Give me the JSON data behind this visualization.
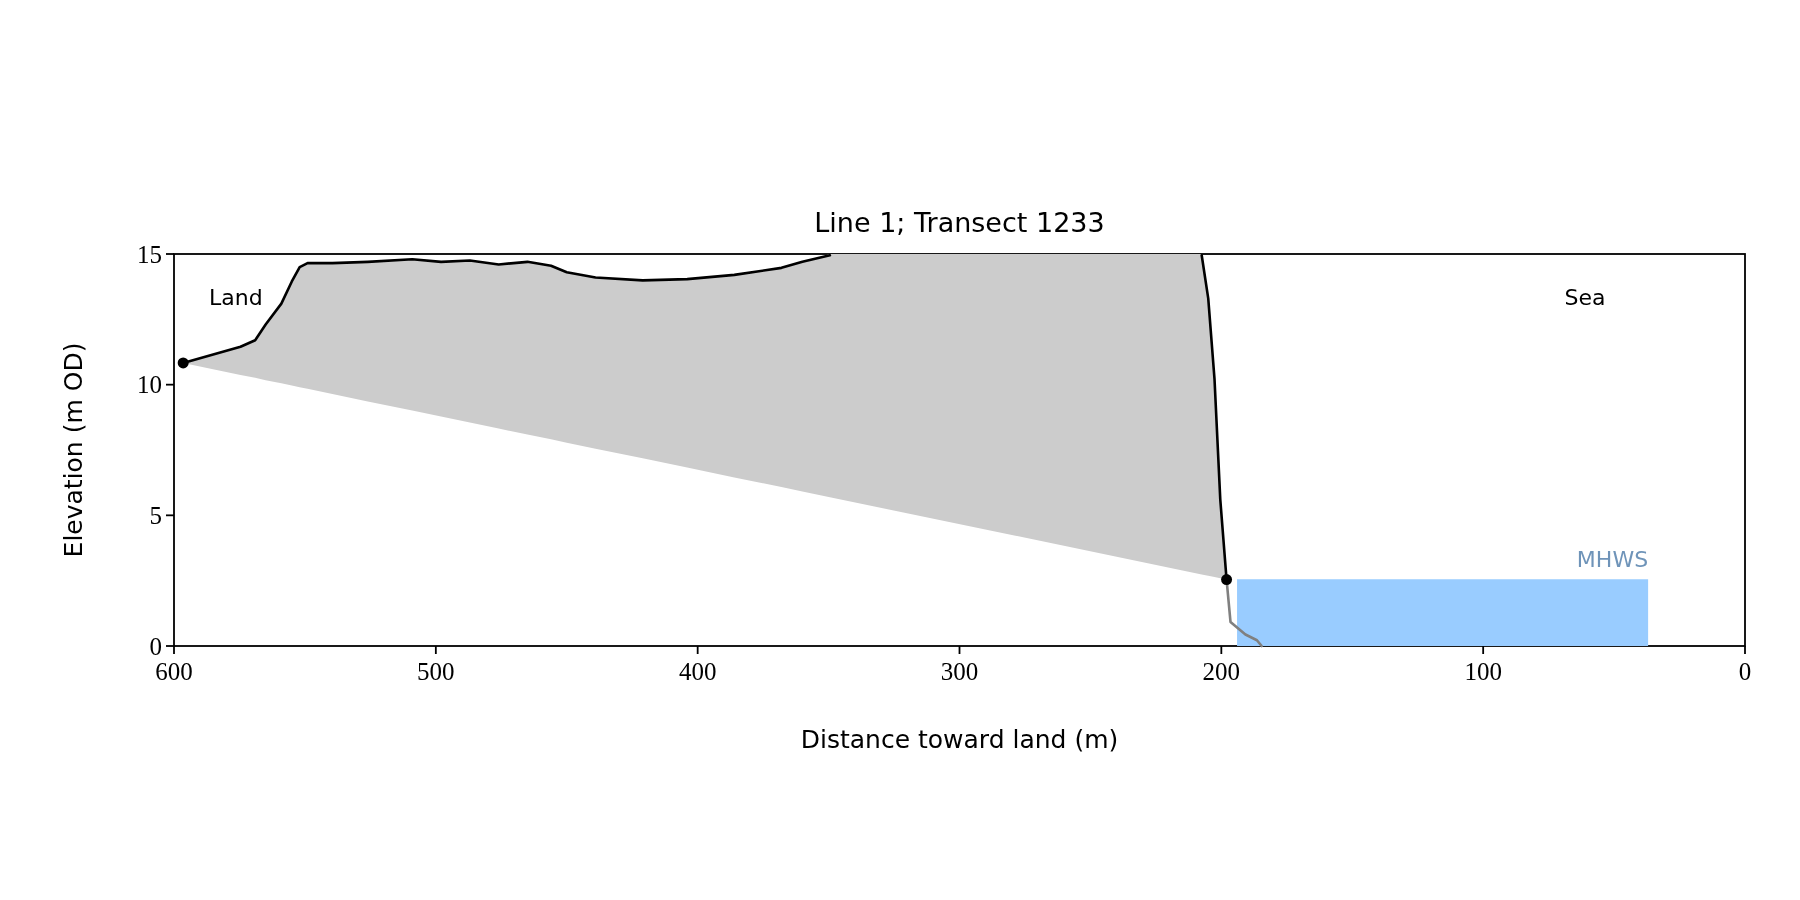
{
  "chart_data": {
    "type": "line",
    "title": "Line 1; Transect 1233",
    "xlabel": "Distance toward land (m)",
    "ylabel": "Elevation (m OD)",
    "xlim": [
      600,
      0
    ],
    "xticks": [
      600,
      500,
      400,
      300,
      200,
      100,
      0
    ],
    "ylim": [
      0,
      15
    ],
    "yticks": [
      0,
      5,
      10,
      15
    ],
    "annotations": [
      "Land",
      "Sea"
    ],
    "series": [
      {
        "type": "area",
        "name": "MHWS",
        "color": "#99ccff",
        "x": [
          194,
          37
        ],
        "values": [
          2.55,
          2.55
        ]
      },
      {
        "color": "#000000",
        "x": [
          596.5,
          574.6,
          569,
          565,
          559,
          555,
          552,
          549,
          539.5,
          526,
          509,
          498,
          487,
          476,
          465,
          456,
          450,
          439,
          421,
          404,
          386,
          368,
          360,
          349.5,
          280,
          207.5,
          205,
          202.6,
          200.4,
          198
        ],
        "values": [
          10.83,
          11.45,
          11.7,
          12.3,
          13.1,
          13.95,
          14.5,
          14.65,
          14.65,
          14.7,
          14.8,
          14.7,
          14.75,
          14.6,
          14.7,
          14.55,
          14.3,
          14.1,
          13.99,
          14.04,
          14.2,
          14.47,
          14.7,
          14.95,
          null,
          14.95,
          13.3,
          10.2,
          5.6,
          2.54
        ],
        "upper": [
          10.83,
          11.45,
          11.7,
          12.3,
          13.1,
          13.95,
          14.5,
          14.65,
          14.65,
          14.7,
          14.8,
          14.7,
          14.75,
          14.6,
          14.7,
          14.55,
          14.3,
          14.1,
          13.99,
          14.04,
          14.2,
          14.47,
          14.7,
          15,
          15,
          15,
          13.3,
          10.2,
          5.6,
          2.54
        ],
        "lower": [
          10.83,
          10.37,
          10.26,
          10.17,
          10.05,
          9.97,
          9.9,
          9.84,
          9.64,
          9.36,
          9.01,
          8.78,
          8.55,
          8.32,
          8.09,
          7.91,
          7.78,
          7.55,
          7.18,
          6.83,
          6.45,
          6.08,
          5.91,
          5.69,
          4.25,
          2.74,
          2.69,
          2.64,
          2.59,
          2.54
        ]
      },
      {
        "type": "line",
        "color": "#808080",
        "x": [
          198,
          196.5,
          190.8,
          186.4,
          184.6
        ],
        "values": [
          2.54,
          0.92,
          0.44,
          0.22,
          0
        ]
      },
      {
        "type": "scatter",
        "color": "#000000",
        "marker": "circle",
        "x": [
          596.5,
          198
        ],
        "values": [
          10.83,
          2.54
        ]
      }
    ]
  }
}
